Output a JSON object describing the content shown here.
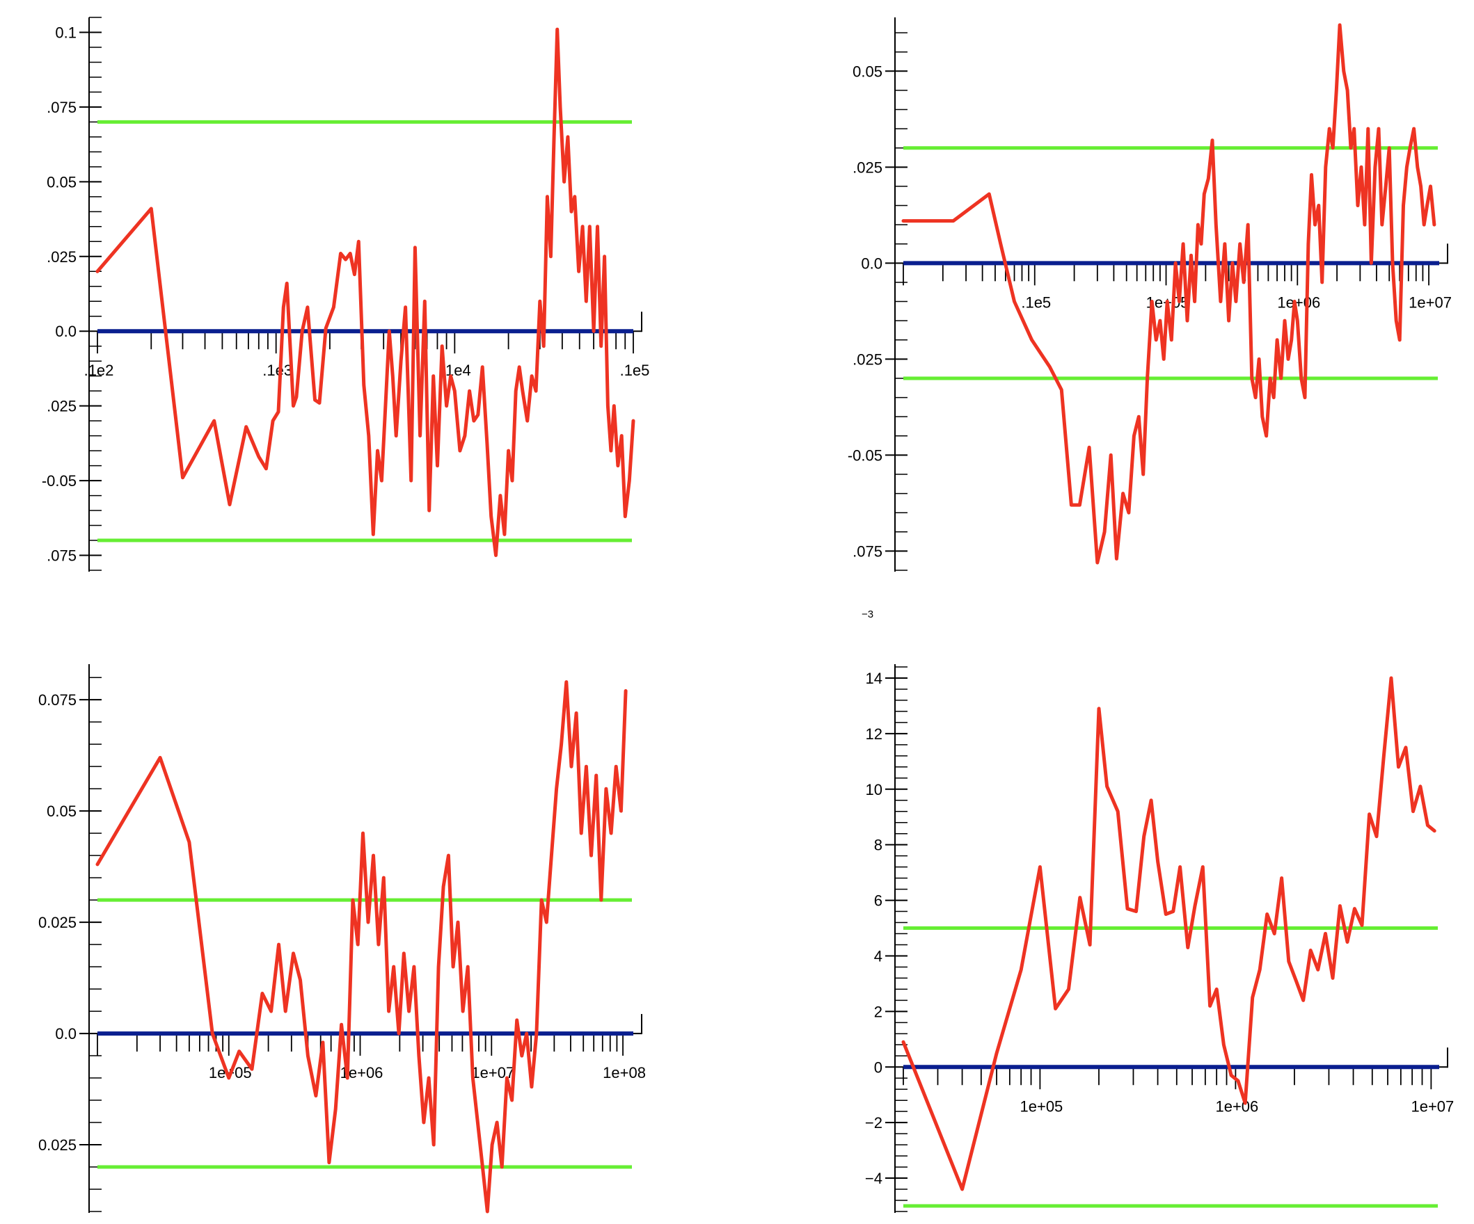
{
  "colors": {
    "series": "#ee3322",
    "bound": "#66ee33",
    "zero": "#0a1f8f",
    "axis": "#000000"
  },
  "chart_data": [
    {
      "type": "line",
      "x_scale": "log",
      "xlim": [
        100,
        100000
      ],
      "ylim": [
        -0.08,
        0.105
      ],
      "y_ticks": [
        -0.075,
        -0.05,
        -0.025,
        0.0,
        0.025,
        0.05,
        0.075,
        0.1
      ],
      "y_tick_labels": [
        ".075",
        "-0.05",
        ".025",
        "0.0",
        ".025",
        "0.05",
        ".075",
        "0.1"
      ],
      "x_tick_labels": [
        {
          "x": 100,
          "label": ".1e2"
        },
        {
          "x": 1000,
          "label": ".1e3"
        },
        {
          "x": 10000,
          "label": ".1e4"
        },
        {
          "x": 100000,
          "label": ".1e5"
        }
      ],
      "zero_line": 0,
      "bounds": [
        0.07,
        -0.07
      ],
      "series_x": [
        100,
        200,
        300,
        450,
        550,
        680,
        800,
        880,
        960,
        1030,
        1100,
        1150,
        1250,
        1300,
        1400,
        1500,
        1650,
        1750,
        1900,
        2100,
        2300,
        2450,
        2600,
        2750,
        2900,
        3100,
        3300,
        3500,
        3700,
        3900,
        4100,
        4300,
        4500,
        4700,
        5000,
        5300,
        5700,
        6000,
        6400,
        6800,
        7200,
        7600,
        8000,
        8500,
        9000,
        9500,
        10000,
        10700,
        11400,
        12100,
        12800,
        13500,
        14300,
        15200,
        16000,
        17000,
        18000,
        19000,
        20000,
        21000,
        22000,
        23000,
        24000,
        25500,
        27000,
        28500,
        30000,
        31500,
        33000,
        34500,
        36000,
        37500,
        39000,
        41000,
        43000,
        45000,
        47000,
        49500,
        52000,
        54500,
        57000,
        60000,
        63000,
        66000,
        69000,
        72000,
        75000,
        78000,
        82000,
        86000,
        90000,
        95000,
        100000
      ],
      "series_y": [
        0.02,
        0.041,
        -0.049,
        -0.03,
        -0.058,
        -0.032,
        -0.042,
        -0.046,
        -0.03,
        -0.027,
        0.008,
        0.016,
        -0.025,
        -0.022,
        0.0,
        0.008,
        -0.023,
        -0.024,
        0.001,
        0.008,
        0.026,
        0.024,
        0.026,
        0.019,
        0.03,
        -0.018,
        -0.035,
        -0.068,
        -0.04,
        -0.05,
        -0.025,
        0.0,
        -0.015,
        -0.035,
        -0.01,
        0.008,
        -0.05,
        0.028,
        -0.035,
        0.01,
        -0.06,
        -0.015,
        -0.045,
        -0.005,
        -0.025,
        -0.015,
        -0.02,
        -0.04,
        -0.035,
        -0.02,
        -0.03,
        -0.028,
        -0.012,
        -0.038,
        -0.062,
        -0.075,
        -0.055,
        -0.068,
        -0.04,
        -0.05,
        -0.02,
        -0.012,
        -0.02,
        -0.03,
        -0.015,
        -0.02,
        0.01,
        -0.005,
        0.045,
        0.025,
        0.065,
        0.101,
        0.075,
        0.05,
        0.065,
        0.04,
        0.045,
        0.02,
        0.035,
        0.01,
        0.035,
        0.0,
        0.035,
        -0.005,
        0.025,
        -0.025,
        -0.04,
        -0.025,
        -0.045,
        -0.035,
        -0.062,
        -0.05,
        -0.03
      ]
    },
    {
      "type": "line",
      "x_scale": "log",
      "xlim": [
        1000,
        12000000
      ],
      "ylim": [
        -0.08,
        0.064
      ],
      "y_ticks": [
        -0.075,
        -0.05,
        -0.025,
        0.0,
        0.025,
        0.05
      ],
      "y_tick_labels": [
        ".075",
        "-0.05",
        ".025",
        "0.0",
        ".025",
        "0.05"
      ],
      "x_tick_labels": [
        {
          "x": 10000,
          "label": ".1e5"
        },
        {
          "x": 100000,
          "label": "1e+05"
        },
        {
          "x": 1000000,
          "label": "1e+06"
        },
        {
          "x": 10000000,
          "label": "1e+07"
        }
      ],
      "zero_line": 0,
      "bounds": [
        0.03,
        -0.03
      ],
      "offset_label": "−3",
      "series_x": [
        1000,
        2400,
        4500,
        5500,
        7000,
        9500,
        13000,
        16000,
        19000,
        22000,
        26000,
        30000,
        34000,
        38000,
        42000,
        47000,
        52000,
        57000,
        62000,
        67000,
        72000,
        78000,
        84000,
        90000,
        96000,
        102000,
        110000,
        118000,
        126000,
        135000,
        145000,
        155000,
        165000,
        175000,
        185000,
        195000,
        210000,
        225000,
        240000,
        260000,
        280000,
        300000,
        320000,
        340000,
        365000,
        390000,
        420000,
        450000,
        480000,
        510000,
        540000,
        580000,
        620000,
        660000,
        700000,
        750000,
        800000,
        850000,
        900000,
        950000,
        1000000,
        1070000,
        1140000,
        1210000,
        1280000,
        1360000,
        1450000,
        1540000,
        1640000,
        1750000,
        1860000,
        1980000,
        2100000,
        2250000,
        2400000,
        2550000,
        2700000,
        2880000,
        3060000,
        3250000,
        3450000,
        3650000,
        3900000,
        4150000,
        4400000,
        4700000,
        5000000,
        5300000,
        5650000,
        6000000,
        6400000,
        6800000,
        7200000,
        7700000,
        8200000,
        8700000,
        9200000,
        9700000,
        10300000,
        11000000
      ],
      "series_y": [
        0.011,
        0.011,
        0.018,
        0.005,
        -0.01,
        -0.02,
        -0.027,
        -0.033,
        -0.063,
        -0.063,
        -0.048,
        -0.078,
        -0.07,
        -0.05,
        -0.077,
        -0.06,
        -0.065,
        -0.045,
        -0.04,
        -0.055,
        -0.03,
        -0.01,
        -0.02,
        -0.015,
        -0.025,
        -0.01,
        -0.02,
        0.0,
        -0.01,
        0.005,
        -0.015,
        0.002,
        -0.01,
        0.01,
        0.005,
        0.018,
        0.022,
        0.032,
        0.01,
        -0.01,
        0.005,
        -0.015,
        0.0,
        -0.01,
        0.005,
        -0.005,
        0.01,
        -0.03,
        -0.035,
        -0.025,
        -0.04,
        -0.045,
        -0.03,
        -0.035,
        -0.02,
        -0.03,
        -0.015,
        -0.025,
        -0.02,
        -0.01,
        -0.015,
        -0.03,
        -0.035,
        0.005,
        0.023,
        0.01,
        0.015,
        -0.005,
        0.025,
        0.035,
        0.03,
        0.045,
        0.062,
        0.05,
        0.045,
        0.03,
        0.035,
        0.015,
        0.025,
        0.01,
        0.035,
        0.0,
        0.025,
        0.035,
        0.01,
        0.02,
        0.03,
        0.0,
        -0.015,
        -0.02,
        0.015,
        0.025,
        0.03,
        0.035,
        0.025,
        0.02,
        0.01,
        0.015,
        0.02,
        0.01
      ]
    },
    {
      "type": "line",
      "x_scale": "log",
      "xlim": [
        10000,
        120000000
      ],
      "ylim": [
        -0.04,
        0.083
      ],
      "y_ticks": [
        -0.025,
        0.0,
        0.025,
        0.05,
        0.075
      ],
      "y_tick_labels": [
        "0.025",
        "0.0",
        "0.025",
        "0.05",
        "0.075"
      ],
      "x_tick_labels": [
        {
          "x": 100000,
          "label": "1e+05"
        },
        {
          "x": 1000000,
          "label": "1e+06"
        },
        {
          "x": 10000000,
          "label": "1e+07"
        },
        {
          "x": 100000000,
          "label": "1e+08"
        }
      ],
      "zero_line": 0,
      "bounds": [
        0.03,
        -0.03
      ],
      "series_x": [
        10000,
        30000,
        50000,
        75000,
        100000,
        120000,
        150000,
        180000,
        210000,
        240000,
        270000,
        310000,
        350000,
        400000,
        460000,
        520000,
        580000,
        650000,
        720000,
        800000,
        880000,
        960000,
        1050000,
        1150000,
        1260000,
        1380000,
        1510000,
        1650000,
        1800000,
        1970000,
        2150000,
        2350000,
        2570000,
        2800000,
        3050000,
        3330000,
        3630000,
        3950000,
        4300000,
        4700000,
        5100000,
        5550000,
        6050000,
        6600000,
        7200000,
        7850000,
        8550000,
        9300000,
        10100000,
        11000000,
        12000000,
        13100000,
        14300000,
        15600000,
        17000000,
        18500000,
        20200000,
        22000000,
        24000000,
        26200000,
        28600000,
        31200000,
        34000000,
        37100000,
        40500000,
        44200000,
        48200000,
        52600000,
        57400000,
        62600000,
        68300000,
        74500000,
        81300000,
        88700000,
        96800000,
        105000000
      ],
      "series_y": [
        0.038,
        0.062,
        0.043,
        0.0,
        -0.01,
        -0.004,
        -0.008,
        0.009,
        0.005,
        0.02,
        0.005,
        0.018,
        0.012,
        -0.005,
        -0.014,
        -0.002,
        -0.029,
        -0.017,
        0.002,
        -0.01,
        0.03,
        0.02,
        0.045,
        0.025,
        0.04,
        0.02,
        0.035,
        0.005,
        0.015,
        0.0,
        0.018,
        0.005,
        0.015,
        -0.005,
        -0.02,
        -0.01,
        -0.025,
        0.015,
        0.033,
        0.04,
        0.015,
        0.025,
        0.005,
        0.015,
        -0.01,
        -0.02,
        -0.03,
        -0.04,
        -0.025,
        -0.02,
        -0.03,
        -0.01,
        -0.015,
        0.003,
        -0.005,
        0.0,
        -0.012,
        0.0,
        0.03,
        0.025,
        0.04,
        0.055,
        0.065,
        0.079,
        0.06,
        0.072,
        0.045,
        0.06,
        0.04,
        0.058,
        0.03,
        0.055,
        0.045,
        0.06,
        0.05,
        0.077
      ]
    },
    {
      "type": "line",
      "x_scale": "log",
      "xlim": [
        20000,
        11000000
      ],
      "ylim": [
        -5.2,
        14.5
      ],
      "y_ticks": [
        -4,
        -2,
        0,
        2,
        4,
        6,
        8,
        10,
        12,
        14
      ],
      "y_tick_labels": [
        "−4",
        "−2",
        "0",
        "2",
        "4",
        "6",
        "8",
        "10",
        "12",
        "14"
      ],
      "x_tick_labels": [
        {
          "x": 100000,
          "label": "1e+05"
        },
        {
          "x": 1000000,
          "label": "1e+06"
        },
        {
          "x": 10000000,
          "label": "1e+07"
        }
      ],
      "zero_line": 0,
      "bounds": [
        5,
        -5
      ],
      "series_x": [
        20000,
        40000,
        60000,
        80000,
        100000,
        120000,
        140000,
        160000,
        180000,
        200000,
        220000,
        250000,
        280000,
        310000,
        340000,
        370000,
        400000,
        440000,
        480000,
        520000,
        570000,
        620000,
        680000,
        740000,
        800000,
        870000,
        950000,
        1030000,
        1120000,
        1220000,
        1330000,
        1450000,
        1580000,
        1720000,
        1870000,
        2040000,
        2220000,
        2420000,
        2640000,
        2880000,
        3140000,
        3420000,
        3730000,
        4060000,
        4430000,
        4830000,
        5260000,
        5730000,
        6250000,
        6810000,
        7420000,
        8090000,
        8810000,
        9600000,
        10400000
      ],
      "series_y": [
        0.9,
        -4.4,
        0.5,
        3.5,
        7.2,
        2.1,
        2.8,
        6.1,
        4.4,
        12.9,
        10.1,
        9.2,
        5.7,
        5.6,
        8.3,
        9.6,
        7.4,
        5.5,
        5.6,
        7.2,
        4.3,
        5.8,
        7.2,
        2.2,
        2.8,
        0.8,
        -0.3,
        -0.5,
        -1.3,
        2.5,
        3.5,
        5.5,
        4.8,
        6.8,
        3.8,
        3.1,
        2.4,
        4.2,
        3.5,
        4.8,
        3.2,
        5.8,
        4.5,
        5.7,
        5.1,
        9.1,
        8.3,
        11.2,
        14.0,
        10.8,
        11.5,
        9.2,
        10.1,
        8.7,
        8.5
      ]
    }
  ]
}
